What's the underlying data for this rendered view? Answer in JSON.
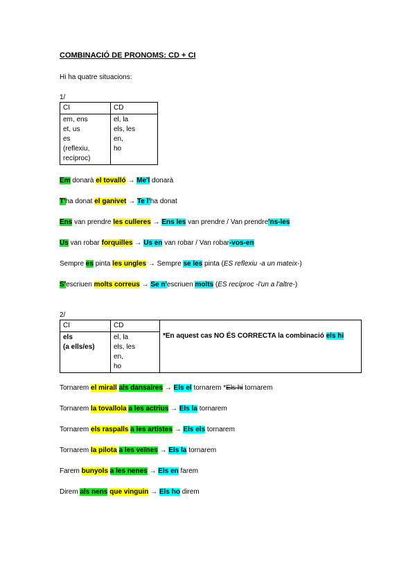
{
  "title": "COMBINACIÓ DE PRONOMS: CD + CI",
  "intro": "Hi ha quatre situacions:",
  "section1": {
    "label": "1/",
    "table": {
      "headers": [
        "CI",
        "CD"
      ],
      "ci_lines": [
        "em, ens",
        "et, us",
        "es",
        "(reflexiu,",
        "recíproc)"
      ],
      "cd_lines": [
        "el, la",
        "els, les",
        "en,",
        "ho"
      ]
    },
    "examples": [
      [
        {
          "t": "Em",
          "h": "g",
          "b": true
        },
        {
          "t": " donarà "
        },
        {
          "t": "el tovalló",
          "h": "y",
          "b": true
        },
        {
          "t": " → "
        },
        {
          "t": "Me'l",
          "h": "c",
          "b": true
        },
        {
          "t": " donarà"
        }
      ],
      [
        {
          "t": "T'",
          "h": "g",
          "b": true
        },
        {
          "t": "ha donat "
        },
        {
          "t": "el ganivet",
          "h": "y",
          "b": true
        },
        {
          "t": " → "
        },
        {
          "t": "Te l'",
          "h": "c",
          "b": true
        },
        {
          "t": "ha donat"
        }
      ],
      [
        {
          "t": "Ens",
          "h": "g",
          "b": true
        },
        {
          "t": " van prendre "
        },
        {
          "t": "les culleres",
          "h": "y",
          "b": true
        },
        {
          "t": " → "
        },
        {
          "t": "Ens les",
          "h": "c",
          "b": true
        },
        {
          "t": " van prendre / Van prendre"
        },
        {
          "t": "'ns-les",
          "h": "c",
          "b": true
        }
      ],
      [
        {
          "t": "Us",
          "h": "g",
          "b": true
        },
        {
          "t": " van robar "
        },
        {
          "t": "forquilles",
          "h": "y",
          "b": true
        },
        {
          "t": " → "
        },
        {
          "t": "Us en",
          "h": "c",
          "b": true
        },
        {
          "t": " van robar / Van robar"
        },
        {
          "t": "-vos-en",
          "h": "c",
          "b": true
        }
      ],
      [
        {
          "t": "Sempre "
        },
        {
          "t": "es",
          "h": "g",
          "b": true
        },
        {
          "t": " pinta "
        },
        {
          "t": "les ungles",
          "h": "y",
          "b": true
        },
        {
          "t": " → Sempre "
        },
        {
          "t": "se les",
          "h": "c",
          "b": true
        },
        {
          "t": " pinta ("
        },
        {
          "t": "ES reflexiu -a un mateix-",
          "i": true
        },
        {
          "t": ")"
        }
      ],
      [
        {
          "t": "S'",
          "h": "g",
          "b": true
        },
        {
          "t": "escriuen "
        },
        {
          "t": "molts correus",
          "h": "y",
          "b": true
        },
        {
          "t": " → "
        },
        {
          "t": "Se n'",
          "h": "c",
          "b": true
        },
        {
          "t": "escriuen "
        },
        {
          "t": "molts",
          "h": "c",
          "b": true
        },
        {
          "t": " ("
        },
        {
          "t": "ES recíproc -l'un a l'altre-",
          "i": true
        },
        {
          "t": ")"
        }
      ]
    ]
  },
  "section2": {
    "label": "2/",
    "table": {
      "headers": [
        "CI",
        "CD"
      ],
      "ci_lines": [
        "els",
        "(a ells/es)"
      ],
      "cd_lines": [
        "el, la",
        "els, les",
        "en,",
        "ho"
      ],
      "note_prefix": "*En aquest cas NO ÉS CORRECTA la combinació ",
      "note_highlight": "els hi"
    },
    "examples": [
      [
        {
          "t": "Tornarem "
        },
        {
          "t": "el mirall",
          "h": "y",
          "b": true
        },
        {
          "t": " "
        },
        {
          "t": "als dansaires",
          "h": "g",
          "b": true
        },
        {
          "t": " → "
        },
        {
          "t": "Els el",
          "h": "c",
          "b": true
        },
        {
          "t": " tornarem  *"
        },
        {
          "t": "Els hi",
          "s": true
        },
        {
          "t": " tornarem"
        }
      ],
      [
        {
          "t": "Tornarem "
        },
        {
          "t": "la tovallola",
          "h": "y",
          "b": true
        },
        {
          "t": " "
        },
        {
          "t": "a les actrius",
          "h": "g",
          "b": true
        },
        {
          "t": " → "
        },
        {
          "t": "Els la",
          "h": "c",
          "b": true
        },
        {
          "t": " tornarem"
        }
      ],
      [
        {
          "t": "Tornarem "
        },
        {
          "t": "els raspalls",
          "h": "y",
          "b": true
        },
        {
          "t": " "
        },
        {
          "t": "a les artistes",
          "h": "g",
          "b": true
        },
        {
          "t": " → "
        },
        {
          "t": "Els els",
          "h": "c",
          "b": true
        },
        {
          "t": " tornarem"
        }
      ],
      [
        {
          "t": "Tornarem "
        },
        {
          "t": "la pilota",
          "h": "y",
          "b": true
        },
        {
          "t": " "
        },
        {
          "t": "a les veïnes",
          "h": "g",
          "b": true
        },
        {
          "t": " → "
        },
        {
          "t": "Els la",
          "h": "c",
          "b": true
        },
        {
          "t": " tornarem"
        }
      ],
      [
        {
          "t": "Farem "
        },
        {
          "t": "bunyols",
          "h": "y",
          "b": true
        },
        {
          "t": " "
        },
        {
          "t": "a les nenes",
          "h": "g",
          "b": true
        },
        {
          "t": " → "
        },
        {
          "t": "Els en",
          "h": "c",
          "b": true
        },
        {
          "t": " farem"
        }
      ],
      [
        {
          "t": "Direm "
        },
        {
          "t": "als nens",
          "h": "g",
          "b": true
        },
        {
          "t": " "
        },
        {
          "t": "que vinguin",
          "h": "y",
          "b": true
        },
        {
          "t": " → "
        },
        {
          "t": "Els ho",
          "h": "c",
          "b": true
        },
        {
          "t": " direm"
        }
      ]
    ]
  }
}
